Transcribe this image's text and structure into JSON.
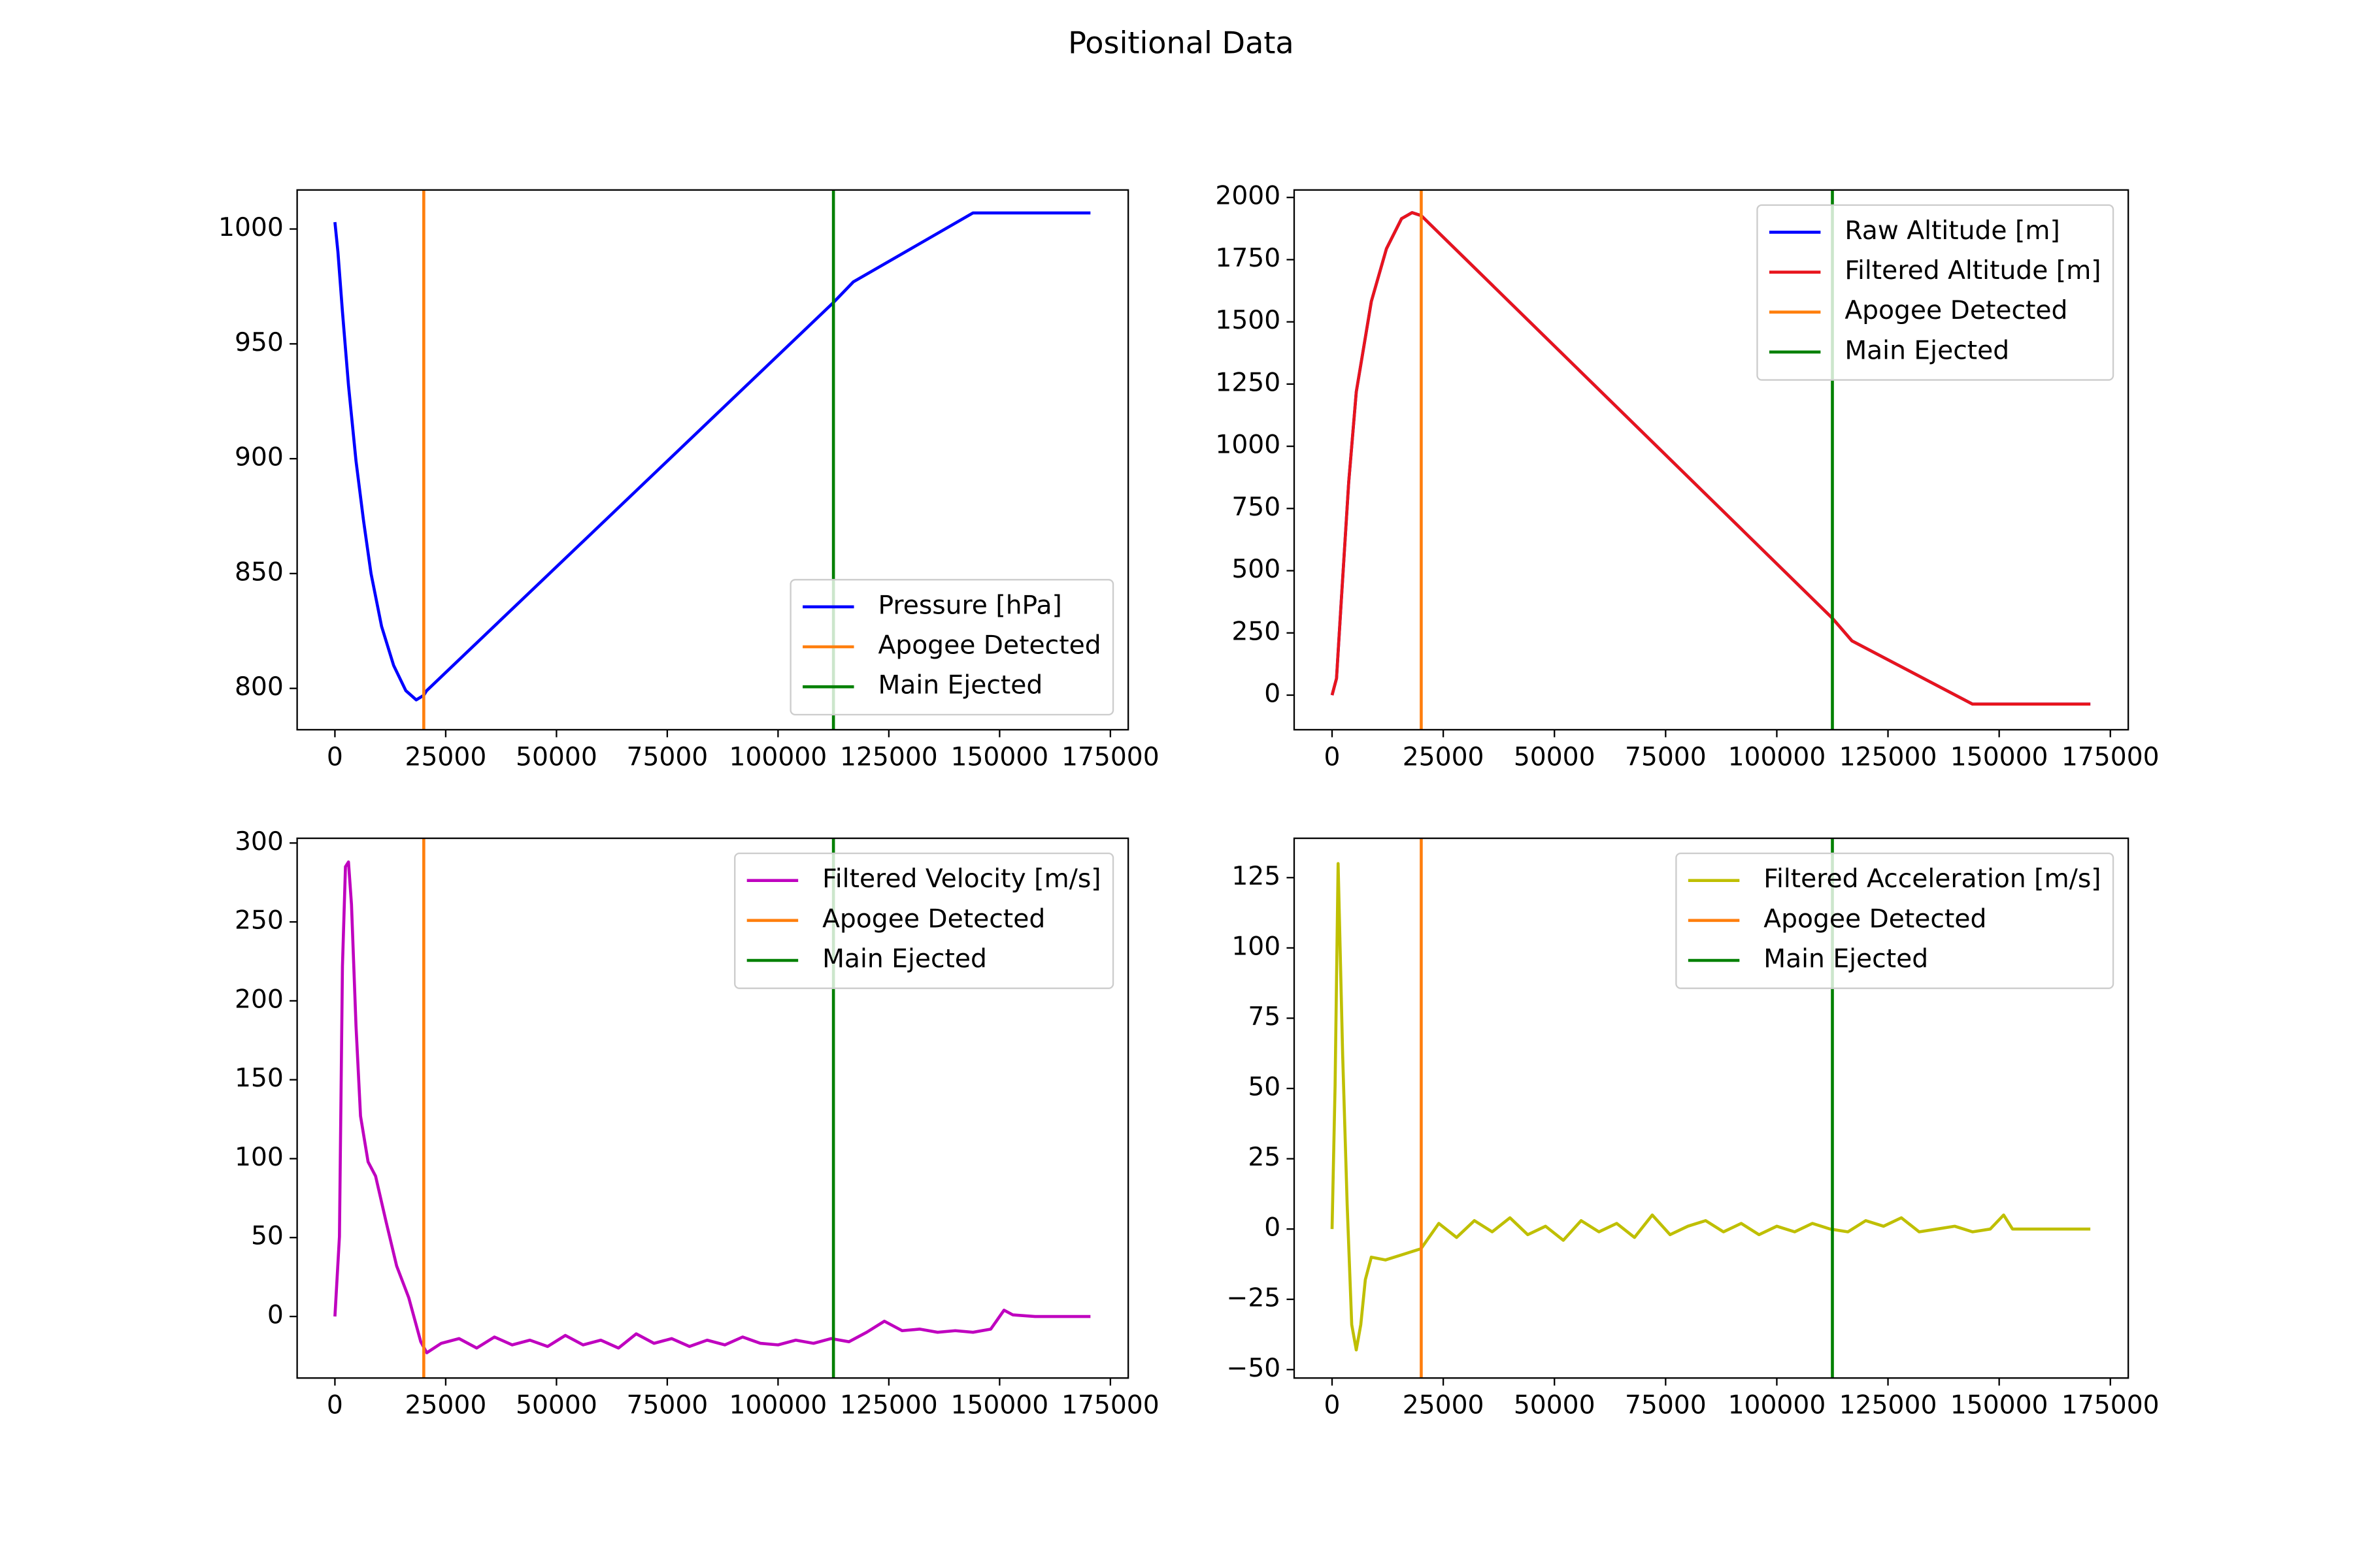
{
  "title": "Positional Data",
  "chart_data": [
    {
      "type": "line",
      "legend": "lower right",
      "x": [
        0,
        680,
        1700,
        3060,
        4760,
        6460,
        8150,
        10530,
        13250,
        16000,
        18350,
        20050,
        20700,
        112500,
        117000,
        144000,
        170500
      ],
      "series": [
        {
          "name": "Pressure [hPa]",
          "color": "#0000ff",
          "values": [
            1003,
            990,
            964,
            932,
            899,
            873,
            850,
            827,
            810,
            799,
            795,
            797,
            799,
            968,
            977,
            1007,
            1007
          ]
        }
      ],
      "vlines": [
        {
          "name": "Apogee Detected",
          "color": "#ff7f0e",
          "x": 20050
        },
        {
          "name": "Main Ejected",
          "color": "#008000",
          "x": 112500
        }
      ],
      "xlim": [
        -8525,
        179025
      ],
      "xticks": [
        0,
        25000,
        50000,
        75000,
        100000,
        125000,
        150000,
        175000
      ],
      "ylim": [
        782,
        1017
      ],
      "yticks": [
        800,
        850,
        900,
        950,
        1000
      ]
    },
    {
      "type": "line",
      "legend": "upper right",
      "x": [
        0,
        1000,
        2040,
        3740,
        5440,
        8830,
        12230,
        15630,
        18000,
        20050,
        112500,
        116900,
        144000,
        170500
      ],
      "series": [
        {
          "name": "Raw Altitude [m]",
          "color": "#0000ff",
          "values": [
            0,
            67,
            370,
            855,
            1218,
            1582,
            1794,
            1915,
            1939,
            1927,
            309,
            218,
            -36,
            -36
          ]
        },
        {
          "name": "Filtered Altitude [m]",
          "color": "#e8141c",
          "values": [
            0,
            67,
            370,
            855,
            1218,
            1582,
            1794,
            1915,
            1939,
            1927,
            309,
            218,
            -36,
            -36
          ]
        }
      ],
      "vlines": [
        {
          "name": "Apogee Detected",
          "color": "#ff7f0e",
          "x": 20050
        },
        {
          "name": "Main Ejected",
          "color": "#008000",
          "x": 112500
        }
      ],
      "xlim": [
        -8525,
        179025
      ],
      "xticks": [
        0,
        25000,
        50000,
        75000,
        100000,
        125000,
        150000,
        175000
      ],
      "ylim": [
        -139,
        2030
      ],
      "yticks": [
        0,
        250,
        500,
        750,
        1000,
        1250,
        1500,
        1750,
        2000
      ]
    },
    {
      "type": "line",
      "legend": "upper right",
      "x": [
        0,
        1020,
        1700,
        2380,
        3060,
        3740,
        4760,
        5780,
        7480,
        9170,
        11550,
        13930,
        16650,
        19370,
        20730,
        24000,
        28000,
        32000,
        36000,
        40000,
        44000,
        48000,
        52000,
        56000,
        60000,
        64000,
        68000,
        72000,
        76000,
        80000,
        84000,
        88000,
        92000,
        96000,
        100000,
        104000,
        108000,
        112000,
        116000,
        120000,
        124000,
        128000,
        132000,
        136000,
        140000,
        144000,
        148000,
        151000,
        153000,
        158000,
        170500
      ],
      "series": [
        {
          "name": "Filtered Velocity [m/s]",
          "color": "#bf00bf",
          "values": [
            0,
            50.6,
            222,
            285,
            288,
            261,
            184,
            127,
            98,
            89,
            60,
            32,
            12,
            -16,
            -23,
            -17,
            -14,
            -20,
            -13,
            -18,
            -15,
            -19,
            -12,
            -18,
            -15,
            -20,
            -11,
            -17,
            -14,
            -19,
            -15,
            -18,
            -13,
            -17,
            -18,
            -15,
            -17,
            -14,
            -16,
            -10,
            -3,
            -9,
            -8,
            -10,
            -9,
            -10,
            -8,
            4,
            1,
            0,
            0
          ]
        }
      ],
      "vlines": [
        {
          "name": "Apogee Detected",
          "color": "#ff7f0e",
          "x": 20050
        },
        {
          "name": "Main Ejected",
          "color": "#008000",
          "x": 112500
        }
      ],
      "xlim": [
        -8525,
        179025
      ],
      "xticks": [
        0,
        25000,
        50000,
        75000,
        100000,
        125000,
        150000,
        175000
      ],
      "ylim": [
        -39,
        303
      ],
      "yticks": [
        0,
        50,
        100,
        150,
        200,
        250,
        300
      ]
    },
    {
      "type": "line",
      "legend": "upper right",
      "x": [
        0,
        680,
        1360,
        2380,
        3400,
        4420,
        5440,
        6460,
        7480,
        8830,
        12000,
        16000,
        20000,
        24000,
        28000,
        32000,
        36000,
        40000,
        44000,
        48000,
        52000,
        56000,
        60000,
        64000,
        68000,
        72000,
        76000,
        80000,
        84000,
        88000,
        92000,
        96000,
        100000,
        104000,
        108000,
        112000,
        116000,
        120000,
        124000,
        128000,
        132000,
        136000,
        140000,
        144000,
        148000,
        151000,
        153000,
        158000,
        170500
      ],
      "series": [
        {
          "name": "Filtered Acceleration [m/s]",
          "color": "#bfbf00",
          "values": [
            0,
            51,
            130,
            62,
            8.5,
            -34,
            -43,
            -34,
            -18,
            -10,
            -11,
            -9,
            -7,
            2,
            -3,
            3,
            -1,
            4,
            -2,
            1,
            -4,
            3,
            -1,
            2,
            -3,
            5,
            -2,
            1,
            3,
            -1,
            2,
            -2,
            1,
            -1,
            2,
            0,
            -1,
            3,
            1,
            4,
            -1,
            0,
            1,
            -1,
            0,
            5,
            0,
            0,
            0
          ]
        }
      ],
      "vlines": [
        {
          "name": "Apogee Detected",
          "color": "#ff7f0e",
          "x": 20050
        },
        {
          "name": "Main Ejected",
          "color": "#008000",
          "x": 112500
        }
      ],
      "xlim": [
        -8525,
        179025
      ],
      "xticks": [
        0,
        25000,
        50000,
        75000,
        100000,
        125000,
        150000,
        175000
      ],
      "ylim": [
        -53,
        139
      ],
      "yticks": [
        {
          "value": -50,
          "label": "−50"
        },
        {
          "value": -25,
          "label": "−25"
        },
        0,
        25,
        50,
        75,
        100,
        125
      ]
    }
  ]
}
